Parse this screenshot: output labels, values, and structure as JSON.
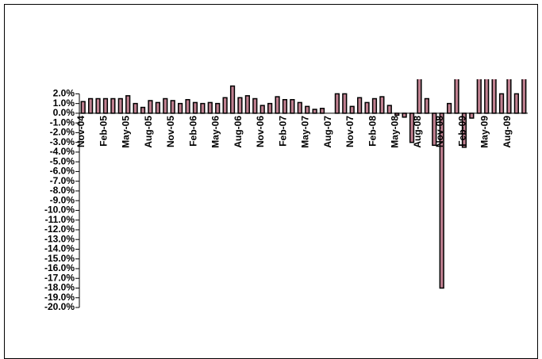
{
  "chart_data": {
    "type": "bar",
    "categories": [
      "Nov-04",
      null,
      null,
      "Feb-05",
      null,
      null,
      "May-05",
      null,
      null,
      "Aug-05",
      null,
      null,
      "Nov-05",
      null,
      null,
      "Feb-06",
      null,
      null,
      "May-06",
      null,
      null,
      "Aug-06",
      null,
      null,
      "Nov-06",
      null,
      null,
      "Feb-07",
      null,
      null,
      "May-07",
      null,
      null,
      "Aug-07",
      null,
      null,
      "Nov-07",
      null,
      null,
      "Feb-08",
      null,
      null,
      "May-08",
      null,
      null,
      "Aug-08",
      null,
      null,
      "Nov-08",
      null,
      null,
      "Feb-09",
      null,
      null,
      "May-09",
      null,
      null,
      "Aug-09",
      null,
      null
    ],
    "values": [
      1.2,
      1.5,
      1.5,
      1.5,
      1.5,
      1.5,
      1.8,
      1.0,
      0.6,
      1.3,
      1.1,
      1.5,
      1.3,
      1.0,
      1.4,
      1.1,
      1.0,
      1.1,
      1.0,
      1.6,
      2.8,
      1.6,
      1.8,
      1.5,
      0.8,
      1.0,
      1.7,
      1.4,
      1.4,
      1.1,
      0.7,
      0.4,
      0.5,
      null,
      2.0,
      2.0,
      0.7,
      1.6,
      1.1,
      1.5,
      1.7,
      0.8,
      -0.2,
      -0.4,
      -3.0,
      4,
      1.5,
      -3.3,
      -18.0,
      1.0,
      4,
      -3.5,
      -0.5,
      4,
      4,
      4,
      2.0,
      4,
      2.0,
      4
    ],
    "color": "#c08090",
    "ylim": [
      -20,
      3.5
    ],
    "yticks": [
      {
        "value": -20,
        "label": "-20.0%"
      },
      {
        "value": -19,
        "label": "-19.0%"
      },
      {
        "value": -18,
        "label": "-18.0%"
      },
      {
        "value": -17,
        "label": "-17.0%"
      },
      {
        "value": -16,
        "label": "-16.0%"
      },
      {
        "value": -15,
        "label": "-15.0%"
      },
      {
        "value": -14,
        "label": "-14.0%"
      },
      {
        "value": -13,
        "label": "-13.0%"
      },
      {
        "value": -12,
        "label": "-12.0%"
      },
      {
        "value": -11,
        "label": "-11.0%"
      },
      {
        "value": -10,
        "label": "-10.0%"
      },
      {
        "value": -9,
        "label": "-9.0%"
      },
      {
        "value": -8,
        "label": "-8.0%"
      },
      {
        "value": -7,
        "label": "-7.0%"
      },
      {
        "value": -6,
        "label": "-6.0%"
      },
      {
        "value": -5,
        "label": "-5.0%"
      },
      {
        "value": -4,
        "label": "-4.0%"
      },
      {
        "value": -3,
        "label": "-3.0%"
      },
      {
        "value": -2,
        "label": "-2.0%"
      },
      {
        "value": -1,
        "label": "-1.0%"
      },
      {
        "value": 0,
        "label": "0.0%"
      },
      {
        "value": 1,
        "label": "1.0%"
      },
      {
        "value": 2,
        "label": "2.0%"
      }
    ],
    "grid": false
  }
}
